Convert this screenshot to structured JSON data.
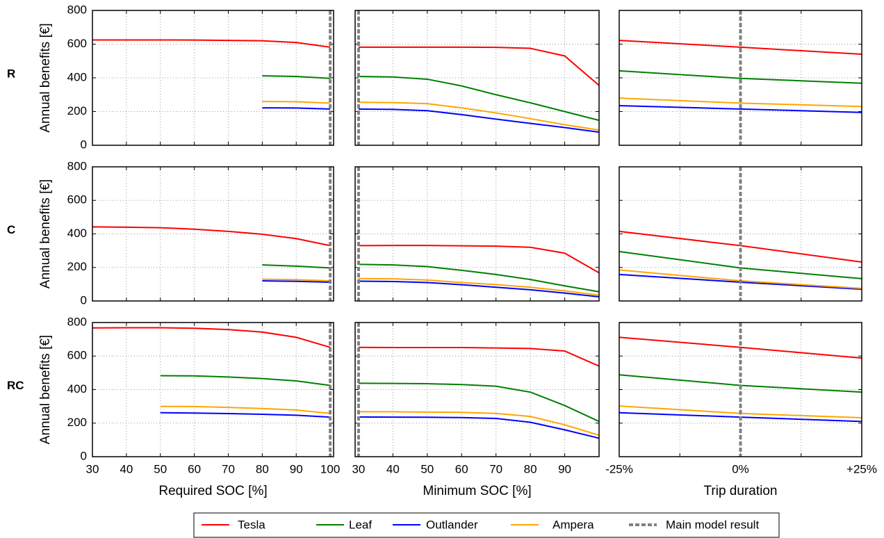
{
  "chart_data": [
    {
      "type": "line",
      "row_label": "R",
      "ylabel": "Annual benefits [€]",
      "x": [
        30,
        40,
        50,
        60,
        70,
        80,
        90,
        100
      ],
      "xlim": [
        30,
        101
      ],
      "xticks": [
        30,
        40,
        50,
        60,
        70,
        80,
        90,
        100
      ],
      "ylim": [
        0,
        800
      ],
      "yticks": [
        0,
        200,
        400,
        600,
        800
      ],
      "grid": true,
      "xtick_labels": false,
      "ytick_labels": true,
      "series": [
        {
          "name": "Tesla",
          "color": "#ff0000",
          "values": [
            625,
            625,
            625,
            624,
            622,
            620,
            610,
            582
          ]
        },
        {
          "name": "Leaf",
          "color": "#008000",
          "values": [
            null,
            null,
            null,
            null,
            null,
            412,
            408,
            397
          ]
        },
        {
          "name": "Outlander",
          "color": "#0000ff",
          "values": [
            null,
            null,
            null,
            null,
            null,
            222,
            221,
            215
          ]
        },
        {
          "name": "Ampera",
          "color": "#ffa500",
          "values": [
            null,
            null,
            null,
            null,
            null,
            260,
            258,
            250
          ]
        }
      ],
      "vline": {
        "name": "Main model result",
        "x": 100,
        "color": "#808080"
      }
    },
    {
      "type": "line",
      "x": [
        30,
        40,
        50,
        60,
        70,
        80,
        90,
        100
      ],
      "xlim": [
        29,
        100
      ],
      "xticks": [
        30,
        40,
        50,
        60,
        70,
        80,
        90
      ],
      "ylim": [
        0,
        800
      ],
      "yticks": [
        0,
        200,
        400,
        600,
        800
      ],
      "grid": true,
      "xtick_labels": false,
      "ytick_labels": false,
      "series": [
        {
          "name": "Tesla",
          "color": "#ff0000",
          "values": [
            582,
            582,
            582,
            582,
            581,
            575,
            530,
            355
          ]
        },
        {
          "name": "Leaf",
          "color": "#008000",
          "values": [
            408,
            405,
            392,
            352,
            300,
            252,
            200,
            148
          ]
        },
        {
          "name": "Outlander",
          "color": "#0000ff",
          "values": [
            215,
            213,
            205,
            182,
            155,
            130,
            105,
            78
          ]
        },
        {
          "name": "Ampera",
          "color": "#ffa500",
          "values": [
            255,
            253,
            247,
            222,
            192,
            158,
            122,
            90
          ]
        }
      ],
      "vline": {
        "name": "Main model result",
        "x": 30,
        "color": "#808080"
      }
    },
    {
      "type": "line",
      "x": [
        -25,
        0,
        25
      ],
      "xlim": [
        -25,
        25
      ],
      "xticks": [
        {
          "value": -25,
          "label": "-25%"
        },
        {
          "value": 0,
          "label": "0%"
        },
        {
          "value": 25,
          "label": "+25%"
        }
      ],
      "xminorticks": [
        -12.5,
        12.5
      ],
      "ylim": [
        0,
        800
      ],
      "yticks": [
        0,
        200,
        400,
        600,
        800
      ],
      "grid": true,
      "xtick_labels": false,
      "ytick_labels": false,
      "series": [
        {
          "name": "Tesla",
          "color": "#ff0000",
          "values": [
            622,
            582,
            540
          ]
        },
        {
          "name": "Leaf",
          "color": "#008000",
          "values": [
            442,
            397,
            368
          ]
        },
        {
          "name": "Outlander",
          "color": "#0000ff",
          "values": [
            235,
            215,
            195
          ]
        },
        {
          "name": "Ampera",
          "color": "#ffa500",
          "values": [
            280,
            250,
            230
          ]
        }
      ],
      "vline": {
        "name": "Main model result",
        "x": 0,
        "color": "#808080"
      }
    },
    {
      "type": "line",
      "row_label": "C",
      "ylabel": "Annual benefits [€]",
      "x": [
        30,
        40,
        50,
        60,
        70,
        80,
        90,
        100
      ],
      "xlim": [
        30,
        101
      ],
      "xticks": [
        30,
        40,
        50,
        60,
        70,
        80,
        90,
        100
      ],
      "ylim": [
        0,
        800
      ],
      "yticks": [
        0,
        200,
        400,
        600,
        800
      ],
      "grid": true,
      "xtick_labels": false,
      "ytick_labels": true,
      "series": [
        {
          "name": "Tesla",
          "color": "#ff0000",
          "values": [
            442,
            440,
            437,
            428,
            415,
            398,
            372,
            330
          ]
        },
        {
          "name": "Leaf",
          "color": "#008000",
          "values": [
            null,
            null,
            null,
            null,
            null,
            215,
            208,
            197
          ]
        },
        {
          "name": "Outlander",
          "color": "#0000ff",
          "values": [
            null,
            null,
            null,
            null,
            null,
            120,
            117,
            112
          ]
        },
        {
          "name": "Ampera",
          "color": "#ffa500",
          "values": [
            null,
            null,
            null,
            null,
            null,
            130,
            127,
            120
          ]
        }
      ],
      "vline": {
        "name": "Main model result",
        "x": 100,
        "color": "#808080"
      }
    },
    {
      "type": "line",
      "x": [
        30,
        40,
        50,
        60,
        70,
        80,
        90,
        100
      ],
      "xlim": [
        29,
        100
      ],
      "xticks": [
        30,
        40,
        50,
        60,
        70,
        80,
        90
      ],
      "ylim": [
        0,
        800
      ],
      "yticks": [
        0,
        200,
        400,
        600,
        800
      ],
      "grid": true,
      "xtick_labels": false,
      "ytick_labels": false,
      "series": [
        {
          "name": "Tesla",
          "color": "#ff0000",
          "values": [
            330,
            331,
            331,
            329,
            327,
            320,
            285,
            168
          ]
        },
        {
          "name": "Leaf",
          "color": "#008000",
          "values": [
            218,
            215,
            205,
            183,
            158,
            128,
            90,
            55
          ]
        },
        {
          "name": "Outlander",
          "color": "#0000ff",
          "values": [
            118,
            116,
            110,
            97,
            82,
            67,
            47,
            25
          ]
        },
        {
          "name": "Ampera",
          "color": "#ffa500",
          "values": [
            133,
            132,
            125,
            110,
            98,
            82,
            60,
            35
          ]
        }
      ],
      "vline": {
        "name": "Main model result",
        "x": 30,
        "color": "#808080"
      }
    },
    {
      "type": "line",
      "x": [
        -25,
        0,
        25
      ],
      "xlim": [
        -25,
        25
      ],
      "xticks": [
        {
          "value": -25,
          "label": "-25%"
        },
        {
          "value": 0,
          "label": "0%"
        },
        {
          "value": 25,
          "label": "+25%"
        }
      ],
      "xminorticks": [
        -12.5,
        12.5
      ],
      "ylim": [
        0,
        800
      ],
      "yticks": [
        0,
        200,
        400,
        600,
        800
      ],
      "grid": true,
      "xtick_labels": false,
      "ytick_labels": false,
      "series": [
        {
          "name": "Tesla",
          "color": "#ff0000",
          "values": [
            415,
            330,
            232
          ]
        },
        {
          "name": "Leaf",
          "color": "#008000",
          "values": [
            295,
            197,
            133
          ]
        },
        {
          "name": "Outlander",
          "color": "#0000ff",
          "values": [
            158,
            112,
            70
          ]
        },
        {
          "name": "Ampera",
          "color": "#ffa500",
          "values": [
            185,
            120,
            75
          ]
        }
      ],
      "vline": {
        "name": "Main model result",
        "x": 0,
        "color": "#808080"
      }
    },
    {
      "type": "line",
      "row_label": "RC",
      "ylabel": "Annual benefits [€]",
      "xlabel": "Required SOC [%]",
      "x": [
        30,
        40,
        50,
        60,
        70,
        80,
        90,
        100
      ],
      "xlim": [
        30,
        101
      ],
      "xticks": [
        30,
        40,
        50,
        60,
        70,
        80,
        90,
        100
      ],
      "ylim": [
        0,
        800
      ],
      "yticks": [
        0,
        200,
        400,
        600,
        800
      ],
      "grid": true,
      "xtick_labels": true,
      "ytick_labels": true,
      "series": [
        {
          "name": "Tesla",
          "color": "#ff0000",
          "values": [
            768,
            769,
            769,
            766,
            758,
            743,
            712,
            652
          ]
        },
        {
          "name": "Leaf",
          "color": "#008000",
          "values": [
            null,
            null,
            483,
            482,
            475,
            466,
            452,
            425
          ]
        },
        {
          "name": "Outlander",
          "color": "#0000ff",
          "values": [
            null,
            null,
            262,
            260,
            257,
            253,
            247,
            236
          ]
        },
        {
          "name": "Ampera",
          "color": "#ffa500",
          "values": [
            null,
            null,
            300,
            299,
            294,
            287,
            278,
            258
          ]
        }
      ],
      "vline": {
        "name": "Main model result",
        "x": 100,
        "color": "#808080"
      }
    },
    {
      "type": "line",
      "xlabel": "Minimum SOC [%]",
      "x": [
        30,
        40,
        50,
        60,
        70,
        80,
        90,
        100
      ],
      "xlim": [
        29,
        100
      ],
      "xticks": [
        30,
        40,
        50,
        60,
        70,
        80,
        90
      ],
      "ylim": [
        0,
        800
      ],
      "yticks": [
        0,
        200,
        400,
        600,
        800
      ],
      "grid": true,
      "xtick_labels": true,
      "ytick_labels": false,
      "series": [
        {
          "name": "Tesla",
          "color": "#ff0000",
          "values": [
            652,
            651,
            651,
            651,
            648,
            645,
            630,
            540
          ]
        },
        {
          "name": "Leaf",
          "color": "#008000",
          "values": [
            438,
            437,
            435,
            430,
            420,
            385,
            305,
            210
          ]
        },
        {
          "name": "Outlander",
          "color": "#0000ff",
          "values": [
            237,
            236,
            235,
            233,
            228,
            205,
            160,
            110
          ]
        },
        {
          "name": "Ampera",
          "color": "#ffa500",
          "values": [
            268,
            268,
            266,
            264,
            258,
            240,
            190,
            128
          ]
        }
      ],
      "vline": {
        "name": "Main model result",
        "x": 30,
        "color": "#808080"
      }
    },
    {
      "type": "line",
      "xlabel": "Trip duration",
      "x": [
        -25,
        0,
        25
      ],
      "xlim": [
        -25,
        25
      ],
      "xticks": [
        {
          "value": -25,
          "label": "-25%"
        },
        {
          "value": 0,
          "label": "0%"
        },
        {
          "value": 25,
          "label": "+25%"
        }
      ],
      "xminorticks": [
        -12.5,
        12.5
      ],
      "ylim": [
        0,
        800
      ],
      "yticks": [
        0,
        200,
        400,
        600,
        800
      ],
      "grid": true,
      "xtick_labels": true,
      "ytick_labels": false,
      "series": [
        {
          "name": "Tesla",
          "color": "#ff0000",
          "values": [
            712,
            652,
            588
          ]
        },
        {
          "name": "Leaf",
          "color": "#008000",
          "values": [
            488,
            425,
            385
          ]
        },
        {
          "name": "Outlander",
          "color": "#0000ff",
          "values": [
            262,
            236,
            210
          ]
        },
        {
          "name": "Ampera",
          "color": "#ffa500",
          "values": [
            302,
            258,
            232
          ]
        }
      ],
      "vline": {
        "name": "Main model result",
        "x": 0,
        "color": "#808080"
      }
    }
  ]
}
